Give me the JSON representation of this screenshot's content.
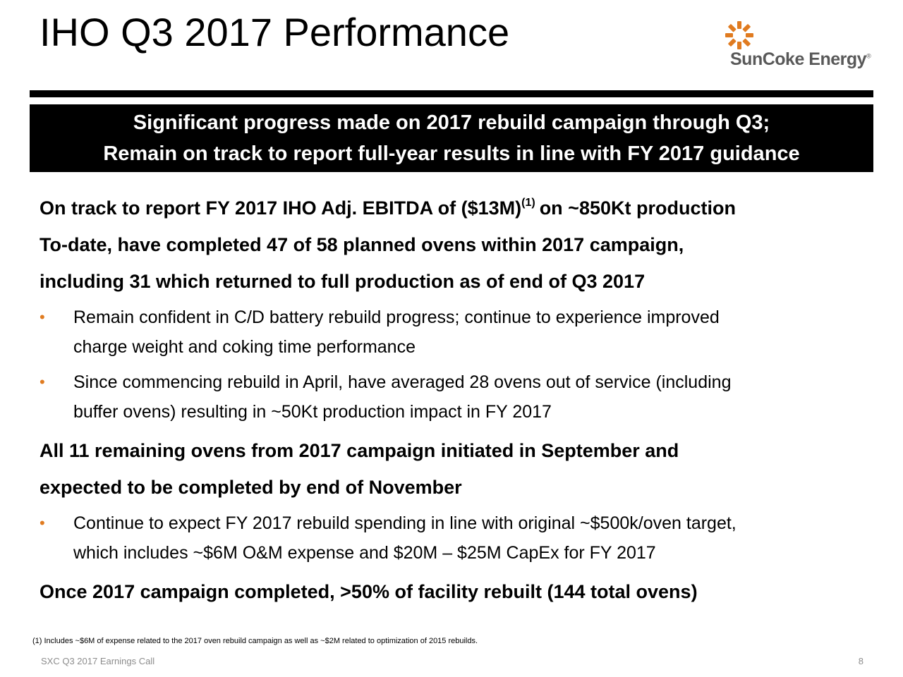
{
  "slide": {
    "title": "IHO Q3 2017 Performance",
    "logo": {
      "name": "SunCoke Energy",
      "registered_mark": "®",
      "icon": "sun-burst-icon",
      "icon_color": "#e07b20",
      "text_color": "#595959"
    },
    "banner": {
      "line1": "Significant progress made on 2017 rebuild campaign through Q3;",
      "line2": "Remain on track to report full-year results in line with FY 2017 guidance"
    },
    "sections": [
      {
        "heading_lines": [
          "On track to report FY 2017 IHO Adj. EBITDA of ($13M)"
        ],
        "heading_sup": "(1)",
        "heading_tail": "on ~850Kt production"
      },
      {
        "heading_lines": [
          "To-date, have completed 47 of 58 planned ovens within 2017 campaign,",
          "including 31 which returned to full production as of end of Q3 2017"
        ],
        "bullets": [
          {
            "lines": [
              "Remain confident in C/D battery rebuild progress; continue to experience improved",
              "charge weight and coking time performance"
            ]
          },
          {
            "lines": [
              "Since commencing rebuild in April, have averaged 28 ovens out of service (including",
              "buffer ovens) resulting in ~50Kt production impact in FY 2017"
            ]
          }
        ]
      },
      {
        "heading_lines": [
          "All 11 remaining ovens from 2017 campaign initiated in September and",
          "expected to be completed by end of November"
        ],
        "bullets": [
          {
            "lines": [
              "Continue to expect FY 2017 rebuild spending in line with original ~$500k/oven target,",
              "which includes ~$6M O&M expense and $20M – $25M CapEx for FY 2017"
            ]
          }
        ]
      },
      {
        "heading_lines": [
          "Once 2017 campaign completed, >50% of facility rebuilt (144 total ovens)"
        ]
      }
    ],
    "bullet_glyph": "•",
    "bullet_color": "#e07b20",
    "footnote": "(1)  Includes ~$6M of expense related to the 2017 oven rebuild campaign as well as ~$2M related to optimization of 2015 rebuilds.",
    "footer_left": "SXC Q3 2017 Earnings Call",
    "page_number": "8"
  }
}
